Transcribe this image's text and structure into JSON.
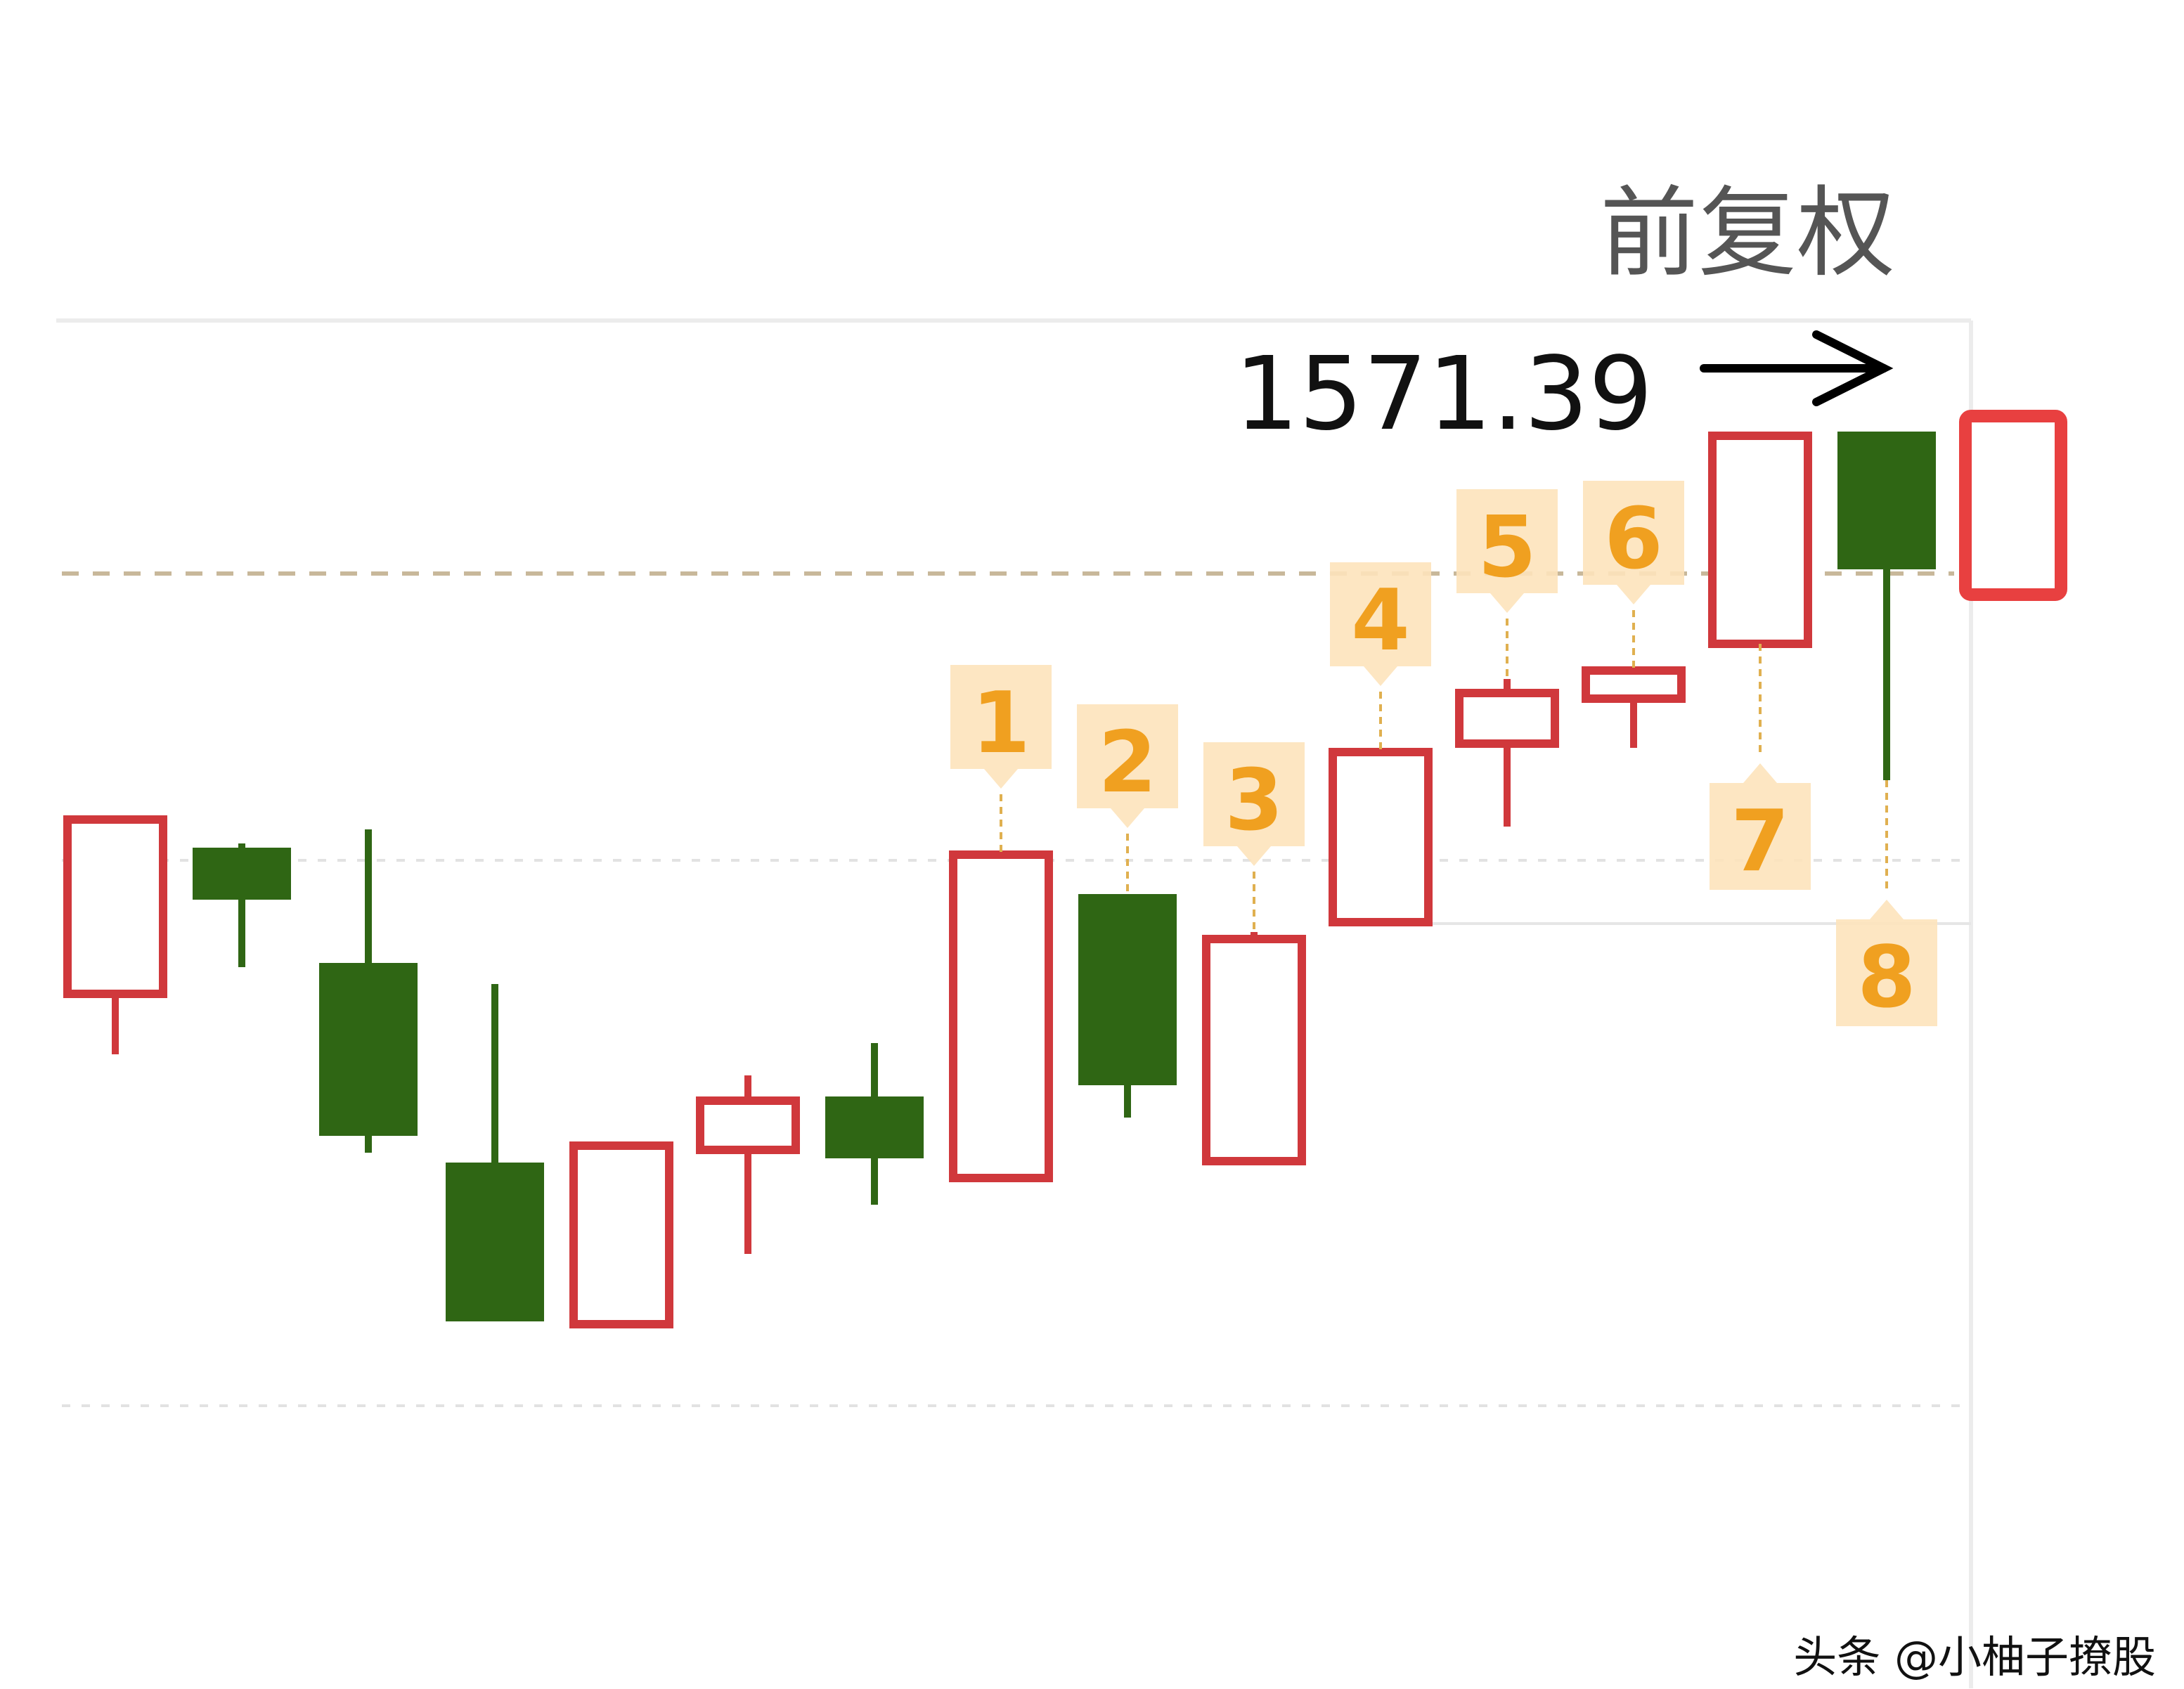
{
  "header": {
    "adjust_mode": "前复权"
  },
  "annotation": {
    "price_label": "1571.39",
    "arrow": "right-arrow-icon"
  },
  "watermark": "头条 @小柚子撩股",
  "colors": {
    "up": "#d0383c",
    "down": "#2f6614",
    "highlight": "#e84040",
    "badge_bg": "#fde3bb",
    "badge_text": "#f0a020",
    "ref_line": "#c8b89a"
  },
  "chart_data": {
    "type": "candlestick",
    "title": "",
    "xlabel": "",
    "ylabel": "",
    "note": "no price axis printed; values on a relative 0-100 vertical scale",
    "ylim": [
      0,
      100
    ],
    "grid": true,
    "reference_line": 69.2,
    "candles": [
      {
        "open": 39.3,
        "close": 51.7,
        "high": 51.7,
        "low": 35.0,
        "dir": "up"
      },
      {
        "open": 49.7,
        "close": 46.0,
        "high": 50.0,
        "low": 41.2,
        "dir": "down"
      },
      {
        "open": 41.5,
        "close": 29.2,
        "high": 51.0,
        "low": 28.0,
        "dir": "down"
      },
      {
        "open": 27.3,
        "close": 16.0,
        "high": 40.0,
        "low": 16.0,
        "dir": "down"
      },
      {
        "open": 15.8,
        "close": 28.5,
        "high": 28.5,
        "low": 15.5,
        "dir": "up"
      },
      {
        "open": 28.2,
        "close": 31.7,
        "high": 33.5,
        "low": 20.8,
        "dir": "up"
      },
      {
        "open": 32.0,
        "close": 27.6,
        "high": 35.8,
        "low": 24.3,
        "dir": "down"
      },
      {
        "open": 26.2,
        "close": 49.2,
        "high": 49.2,
        "low": 26.2,
        "dir": "up"
      },
      {
        "open": 46.4,
        "close": 32.8,
        "high": 46.4,
        "low": 30.5,
        "dir": "down"
      },
      {
        "open": 27.4,
        "close": 43.2,
        "high": 43.7,
        "low": 27.4,
        "dir": "up"
      },
      {
        "open": 44.4,
        "close": 56.5,
        "high": 56.5,
        "low": 44.4,
        "dir": "up"
      },
      {
        "open": 57.1,
        "close": 60.7,
        "high": 61.7,
        "low": 51.2,
        "dir": "up"
      },
      {
        "open": 60.3,
        "close": 62.3,
        "high": 62.3,
        "low": 56.8,
        "dir": "up"
      },
      {
        "open": 64.2,
        "close": 79.0,
        "high": 79.0,
        "low": 64.2,
        "dir": "up"
      },
      {
        "open": 79.3,
        "close": 69.5,
        "high": 79.3,
        "low": 54.5,
        "dir": "down"
      },
      {
        "open": 67.7,
        "close": 80.4,
        "high": 80.4,
        "low": 67.7,
        "dir": "up",
        "highlighted": true
      }
    ],
    "markers": [
      {
        "label": "1",
        "candle": 7,
        "side": "above"
      },
      {
        "label": "2",
        "candle": 8,
        "side": "above"
      },
      {
        "label": "3",
        "candle": 9,
        "side": "above"
      },
      {
        "label": "4",
        "candle": 10,
        "side": "above"
      },
      {
        "label": "5",
        "candle": 11,
        "side": "above"
      },
      {
        "label": "6",
        "candle": 12,
        "side": "above"
      },
      {
        "label": "7",
        "candle": 13,
        "side": "below"
      },
      {
        "label": "8",
        "candle": 14,
        "side": "below"
      }
    ]
  }
}
